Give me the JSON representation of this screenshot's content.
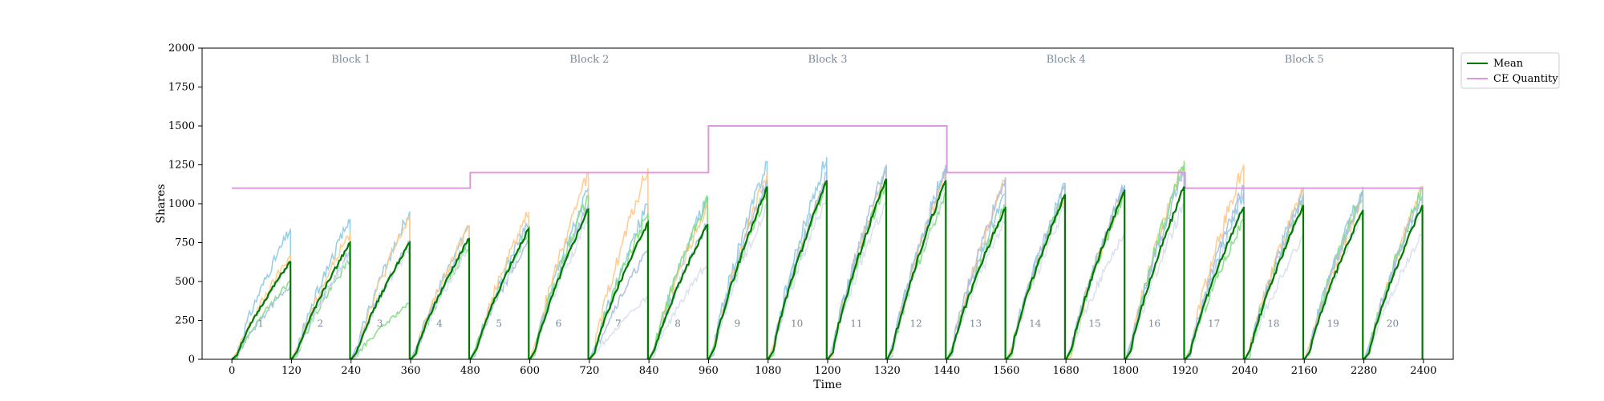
{
  "chart_data": {
    "type": "line",
    "xlabel": "Time",
    "ylabel": "Shares",
    "xlim": [
      -60,
      2460
    ],
    "ylim": [
      0,
      2000
    ],
    "x_ticks": [
      "0",
      "120",
      "240",
      "360",
      "480",
      "600",
      "720",
      "840",
      "960",
      "1080",
      "1200",
      "1320",
      "1440",
      "1560",
      "1680",
      "1800",
      "1920",
      "2040",
      "2160",
      "2280",
      "2400"
    ],
    "y_ticks": [
      "0",
      "250",
      "500",
      "750",
      "1000",
      "1250",
      "1500",
      "1750",
      "2000"
    ],
    "grid": false,
    "legend_position": "outside-top-right",
    "legend": [
      {
        "label": "Mean",
        "color": "#007a00"
      },
      {
        "label": "CE Quantity",
        "color": "#dd99dd"
      }
    ],
    "blocks": [
      {
        "label": "Block 1",
        "x_center": 240
      },
      {
        "label": "Block 2",
        "x_center": 720
      },
      {
        "label": "Block 3",
        "x_center": 1200
      },
      {
        "label": "Block 4",
        "x_center": 1680
      },
      {
        "label": "Block 5",
        "x_center": 2160
      }
    ],
    "rounds": [
      "1",
      "2",
      "3",
      "4",
      "5",
      "6",
      "7",
      "8",
      "9",
      "10",
      "11",
      "12",
      "13",
      "14",
      "15",
      "16",
      "17",
      "18",
      "19",
      "20"
    ],
    "round_label_y": 230,
    "round_length": 120,
    "ce_quantity": [
      {
        "x0": 0,
        "x1": 480,
        "y": 1100
      },
      {
        "x0": 480,
        "x1": 960,
        "y": 1200
      },
      {
        "x0": 960,
        "x1": 1440,
        "y": 1500
      },
      {
        "x0": 1440,
        "x1": 1920,
        "y": 1200
      },
      {
        "x0": 1920,
        "x1": 2400,
        "y": 1100
      }
    ],
    "mean_peaks": [
      630,
      750,
      750,
      780,
      840,
      970,
      880,
      870,
      1110,
      1150,
      1160,
      1150,
      980,
      1060,
      1090,
      1110,
      980,
      990,
      960,
      990
    ],
    "participant_colors": [
      "#8ecae6",
      "#ffc98a",
      "#7ee07e",
      "#aabfe0",
      "#d8e0ee"
    ],
    "participant_peaks": [
      [
        840,
        670,
        500,
        480,
        620
      ],
      [
        900,
        820,
        640,
        700,
        680
      ],
      [
        950,
        920,
        360,
        760,
        720
      ],
      [
        860,
        860,
        740,
        780,
        720
      ],
      [
        900,
        950,
        820,
        760,
        800
      ],
      [
        1100,
        1200,
        1050,
        1000,
        900
      ],
      [
        1000,
        1230,
        940,
        700,
        400
      ],
      [
        1050,
        1000,
        1040,
        880,
        620
      ],
      [
        1270,
        1200,
        1080,
        1150,
        1000
      ],
      [
        1300,
        1170,
        1140,
        1200,
        1050
      ],
      [
        1240,
        1200,
        1150,
        1250,
        1020
      ],
      [
        1250,
        1200,
        1080,
        1220,
        1100
      ],
      [
        1080,
        1150,
        990,
        1170,
        900
      ],
      [
        1130,
        1060,
        1070,
        1120,
        980
      ],
      [
        1120,
        1080,
        1070,
        1120,
        820
      ],
      [
        1240,
        1280,
        1270,
        1210,
        1000
      ],
      [
        1070,
        1250,
        900,
        1120,
        1000
      ],
      [
        1100,
        1100,
        1030,
        1060,
        800
      ],
      [
        1110,
        1050,
        1090,
        1070,
        950
      ],
      [
        1050,
        1110,
        1100,
        1070,
        820
      ]
    ]
  }
}
